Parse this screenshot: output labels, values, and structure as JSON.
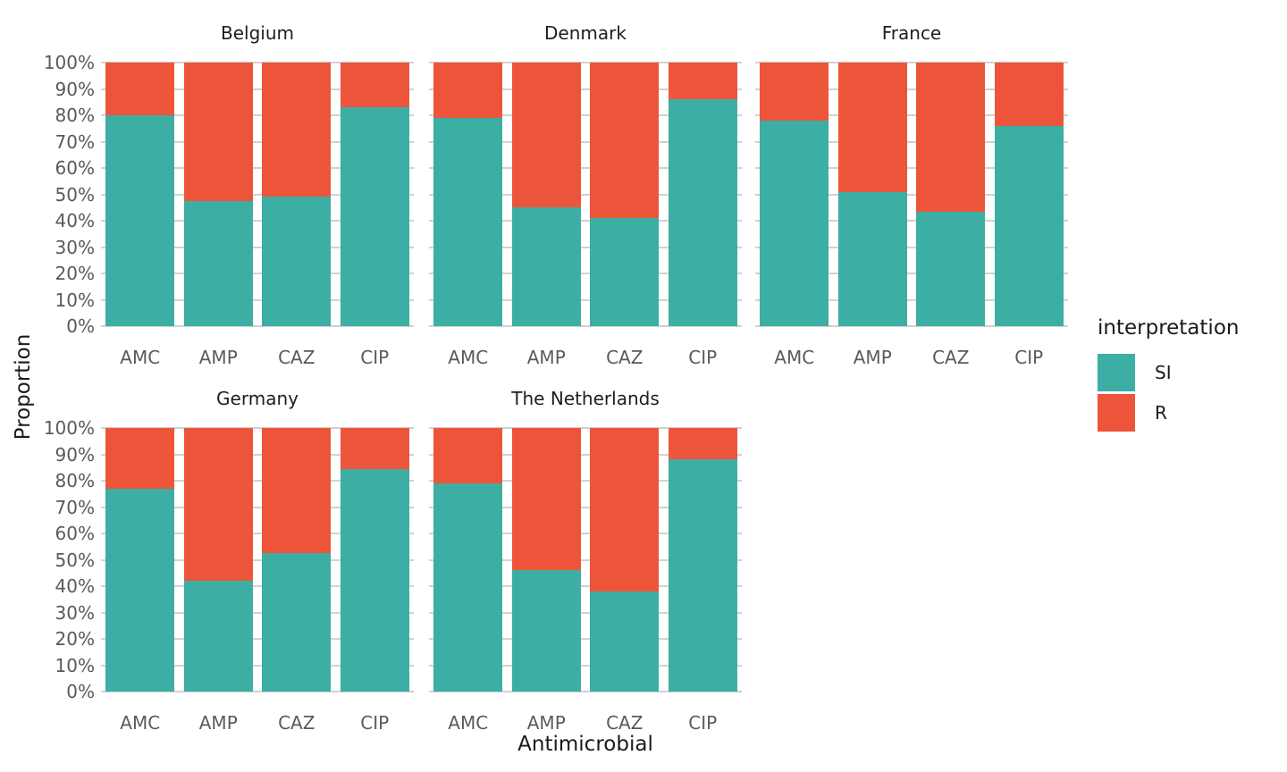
{
  "figure": {
    "y_axis_title": "Proportion",
    "x_axis_title": "Antimicrobial"
  },
  "legend": {
    "title": "interpretation",
    "position": "right",
    "items": [
      {
        "label": "SI",
        "color": "#3CAEA3"
      },
      {
        "label": "R",
        "color": "#ED553B"
      }
    ]
  },
  "chart_data": {
    "type": "bar",
    "stacked": true,
    "unit": "percent",
    "title": "",
    "xlabel": "Antimicrobial",
    "ylabel": "Proportion",
    "ylim": [
      0,
      100
    ],
    "grid": "horizontal",
    "legend_position": "right",
    "y_ticks": [
      "0%",
      "10%",
      "20%",
      "30%",
      "40%",
      "50%",
      "60%",
      "70%",
      "80%",
      "90%",
      "100%"
    ],
    "categories": [
      "AMC",
      "AMP",
      "CAZ",
      "CIP"
    ],
    "facets": [
      {
        "title": "Belgium",
        "series": [
          {
            "name": "SI",
            "values": [
              80,
              47.5,
              49,
              83
            ]
          },
          {
            "name": "R",
            "values": [
              20,
              52.5,
              51,
              17
            ]
          }
        ]
      },
      {
        "title": "Denmark",
        "series": [
          {
            "name": "SI",
            "values": [
              79,
              45,
              41,
              86
            ]
          },
          {
            "name": "R",
            "values": [
              21,
              55,
              59,
              14
            ]
          }
        ]
      },
      {
        "title": "France",
        "series": [
          {
            "name": "SI",
            "values": [
              78,
              51,
              43.5,
              76
            ]
          },
          {
            "name": "R",
            "values": [
              22,
              49,
              56.5,
              24
            ]
          }
        ]
      },
      {
        "title": "Germany",
        "series": [
          {
            "name": "SI",
            "values": [
              77,
              42,
              52.5,
              84.5
            ]
          },
          {
            "name": "R",
            "values": [
              23,
              58,
              47.5,
              15.5
            ]
          }
        ]
      },
      {
        "title": "The Netherlands",
        "series": [
          {
            "name": "SI",
            "values": [
              79,
              46,
              38,
              88
            ]
          },
          {
            "name": "R",
            "values": [
              21,
              54,
              62,
              12
            ]
          }
        ]
      }
    ]
  }
}
